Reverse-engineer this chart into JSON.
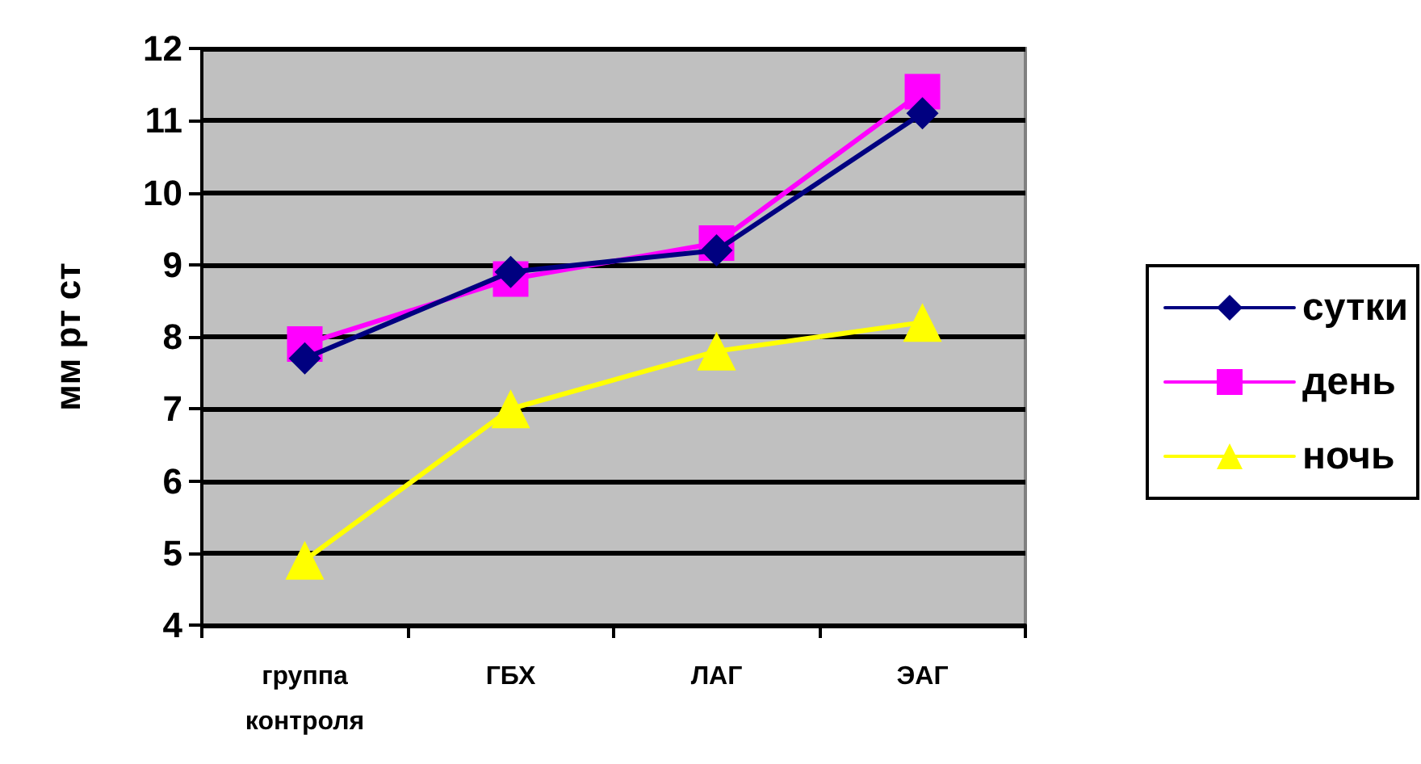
{
  "chart_data": {
    "type": "line",
    "ylabel": "мм рт ст",
    "categories": [
      "группа контроля",
      "ГБХ",
      "ЛАГ",
      "ЭАГ"
    ],
    "series": [
      {
        "name": "сутки",
        "color": "#000080",
        "marker": "diamond",
        "values": [
          7.7,
          8.9,
          9.2,
          11.1
        ]
      },
      {
        "name": "день",
        "color": "#ff00ff",
        "marker": "square",
        "values": [
          7.9,
          8.8,
          9.3,
          11.4
        ]
      },
      {
        "name": "ночь",
        "color": "#ffff00",
        "marker": "triangle",
        "values": [
          4.9,
          7.0,
          7.8,
          8.2
        ]
      }
    ],
    "ylim": [
      4,
      12
    ],
    "yticks": [
      4,
      5,
      6,
      7,
      8,
      9,
      10,
      11,
      12
    ],
    "grid": "y",
    "legend": "right"
  }
}
